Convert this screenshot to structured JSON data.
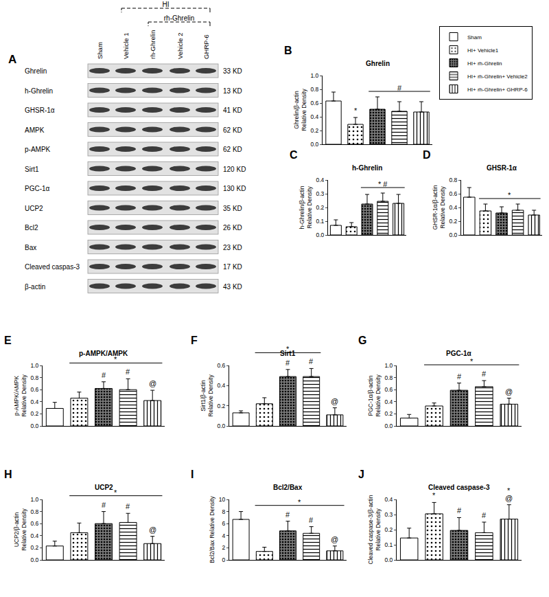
{
  "panel_a": {
    "label": "A",
    "brackets": [
      {
        "text": "HI",
        "from": 1,
        "to": 4
      },
      {
        "text": "rh-Ghrelin",
        "from": 2,
        "to": 4
      }
    ],
    "lanes": [
      "Sham",
      "Vehicle 1",
      "rh-Ghrelin",
      "Vehicle 2",
      "GHRP-6"
    ],
    "rows": [
      {
        "name": "Ghrelin",
        "size": "33 KD"
      },
      {
        "name": "h-Ghrelin",
        "size": "13 KD"
      },
      {
        "name": "GHSR-1α",
        "size": "41 KD"
      },
      {
        "name": "AMPK",
        "size": "62 KD"
      },
      {
        "name": "p-AMPK",
        "size": "62 KD"
      },
      {
        "name": "Sirt1",
        "size": "120 KD"
      },
      {
        "name": "PGC-1α",
        "size": "130 KD"
      },
      {
        "name": "UCP2",
        "size": "35 KD"
      },
      {
        "name": "Bcl2",
        "size": "26 KD"
      },
      {
        "name": "Bax",
        "size": "23 KD"
      },
      {
        "name": "Cleaved caspas-3",
        "size": "17 KD"
      },
      {
        "name": "β-actin",
        "size": "43 KD"
      }
    ]
  },
  "legend": "upper right",
  "groups": [
    {
      "name": "Sham",
      "color": "#ffffff",
      "marker": "plain"
    },
    {
      "name": "HI+ Vehicle1",
      "color": "#ffffff",
      "marker": "dots"
    },
    {
      "name": "HI+ rh-Ghrelin",
      "color": "#7a7a7a",
      "marker": "dark-dots"
    },
    {
      "name": "HI+ rh-Ghrelin+ Vehicle2",
      "color": "#ffffff",
      "marker": "horizontal"
    },
    {
      "name": "HI+ rh-Ghrelin+ GHRP-6",
      "color": "#ffffff",
      "marker": "vertical"
    }
  ],
  "chart_data": [
    {
      "panel": "B",
      "type": "bar",
      "title": "Ghrelin",
      "y_label": "Ghrelin/β-actin\nRelative Density",
      "categories": [
        "Sham",
        "HI+ Vehicle1",
        "HI+ rh-Ghrelin",
        "HI+ rh-Ghrelin+ Vehicle2",
        "HI+ rh-Ghrelin+ GHRP-6"
      ],
      "tick_labels": "y",
      "values": [
        0.63,
        0.29,
        0.51,
        0.48,
        0.47
      ],
      "errors": [
        0.13,
        0.1,
        0.18,
        0.14,
        0.15
      ],
      "ylim": [
        0,
        1.0
      ],
      "yticks": [
        {
          "value": 0,
          "label": "0.0"
        },
        {
          "value": 0.2,
          "label": "0.2"
        },
        {
          "value": 0.4,
          "label": "0.4"
        },
        {
          "value": 0.6,
          "label": "0.6"
        },
        {
          "value": 0.8,
          "label": "0.8"
        },
        {
          "value": 1.0,
          "label": "1.0"
        }
      ],
      "annotations": [
        {
          "text": "*",
          "from": 1,
          "to": 1
        },
        {
          "text": "#",
          "from": 2,
          "to": 4
        }
      ]
    },
    {
      "panel": "C",
      "type": "bar",
      "title": "h-Ghrelin",
      "y_label": "h-Ghrelin/β-actin\nRelative Density",
      "categories": [
        "Sham",
        "HI+ Vehicle1",
        "HI+ rh-Ghrelin",
        "HI+ rh-Ghrelin+ Vehicle2",
        "HI+ rh-Ghrelin+ GHRP-6"
      ],
      "tick_labels": "y",
      "values": [
        0.07,
        0.06,
        0.225,
        0.245,
        0.23
      ],
      "errors": [
        0.04,
        0.03,
        0.07,
        0.06,
        0.065
      ],
      "ylim": [
        0,
        0.4
      ],
      "yticks": [
        {
          "value": 0,
          "label": "0.0"
        },
        0.1,
        0.2,
        0.3,
        0.4
      ],
      "annotations": [
        {
          "text": "* #",
          "from": 2,
          "to": 4
        }
      ]
    },
    {
      "panel": "D",
      "type": "bar",
      "title": "GHSR-1α",
      "y_label": "GHSR-1α/β-actin\nRelative Density",
      "categories": [
        "Sham",
        "HI+ Vehicle1",
        "HI+ rh-Ghrelin",
        "HI+ rh-Ghrelin+ Vehicle2",
        "HI+ rh-Ghrelin+ GHRP-6"
      ],
      "tick_labels": "y",
      "values": [
        0.55,
        0.35,
        0.32,
        0.36,
        0.29
      ],
      "errors": [
        0.14,
        0.1,
        0.09,
        0.09,
        0.07
      ],
      "ylim": [
        0,
        0.8
      ],
      "yticks": [
        {
          "value": 0,
          "label": "0.0"
        },
        0.2,
        0.4,
        0.6,
        0.8
      ],
      "annotations": [
        {
          "text": "*",
          "from": 1,
          "to": 4
        }
      ]
    },
    {
      "panel": "E",
      "type": "bar",
      "title": "p-AMPK/AMPK",
      "y_label": "p-AMPK/AMPK\nRelative Density",
      "categories": [
        "Sham",
        "HI+ Vehicle1",
        "HI+ rh-Ghrelin",
        "HI+ rh-Ghrelin+ Vehicle2",
        "HI+ rh-Ghrelin+ GHRP-6"
      ],
      "tick_labels": "y",
      "values": [
        0.29,
        0.46,
        0.62,
        0.6,
        0.42
      ],
      "errors": [
        0.1,
        0.1,
        0.11,
        0.18,
        0.17
      ],
      "ylim": [
        0,
        1.0
      ],
      "yticks": [
        {
          "value": 0,
          "label": "0.0"
        },
        {
          "value": 0.2,
          "label": "0.2"
        },
        {
          "value": 0.4,
          "label": "0.4"
        },
        {
          "value": 0.6,
          "label": "0.6"
        },
        {
          "value": 0.8,
          "label": "0.8"
        },
        {
          "value": 1.0,
          "label": "1.0"
        }
      ],
      "annotations": [
        {
          "text": "#",
          "from": 2,
          "to": 2
        },
        {
          "text": "#",
          "from": 3,
          "to": 3
        },
        {
          "text": "@",
          "from": 4,
          "to": 4
        },
        {
          "text": "*",
          "from": 1,
          "to": 4
        }
      ]
    },
    {
      "panel": "F",
      "type": "bar",
      "title": "Sirt1",
      "y_label": "Sirt1/β-actin\nRelative Density",
      "categories": [
        "Sham",
        "HI+ Vehicle1",
        "HI+ rh-Ghrelin",
        "HI+ rh-Ghrelin+ Vehicle2",
        "HI+ rh-Ghrelin+ GHRP-6"
      ],
      "tick_labels": "y",
      "values": [
        0.13,
        0.22,
        0.49,
        0.49,
        0.11
      ],
      "errors": [
        0.02,
        0.06,
        0.07,
        0.08,
        0.07
      ],
      "ylim": [
        0,
        0.6
      ],
      "yticks": [
        {
          "value": 0,
          "label": "0.0"
        },
        0.2,
        0.4,
        0.6
      ],
      "annotations": [
        {
          "text": "#",
          "from": 2,
          "to": 2
        },
        {
          "text": "#",
          "from": 3,
          "to": 3
        },
        {
          "text": "@",
          "from": 4,
          "to": 4
        },
        {
          "text": "*",
          "from": 1,
          "to": 3
        }
      ]
    },
    {
      "panel": "G",
      "type": "bar",
      "title": "PGC-1α",
      "y_label": "PGC-1α/β-actin\nRelative Density",
      "categories": [
        "Sham",
        "HI+ Vehicle1",
        "HI+ rh-Ghrelin",
        "HI+ rh-Ghrelin+ Vehicle2",
        "HI+ rh-Ghrelin+ GHRP-6"
      ],
      "tick_labels": "y",
      "values": [
        0.13,
        0.33,
        0.59,
        0.65,
        0.36
      ],
      "errors": [
        0.06,
        0.05,
        0.12,
        0.1,
        0.1
      ],
      "ylim": [
        0,
        1.0
      ],
      "yticks": [
        {
          "value": 0,
          "label": "0.0"
        },
        {
          "value": 0.2,
          "label": "0.2"
        },
        {
          "value": 0.4,
          "label": "0.4"
        },
        {
          "value": 0.6,
          "label": "0.6"
        },
        {
          "value": 0.8,
          "label": "0.8"
        },
        {
          "value": 1.0,
          "label": "1.0"
        }
      ],
      "annotations": [
        {
          "text": "#",
          "from": 2,
          "to": 2
        },
        {
          "text": "#",
          "from": 3,
          "to": 3
        },
        {
          "text": "@",
          "from": 4,
          "to": 4
        },
        {
          "text": "*",
          "from": 1,
          "to": 4
        }
      ]
    },
    {
      "panel": "H",
      "type": "bar",
      "title": "UCP2",
      "y_label": "UCP2/β-actin\nRelative Density",
      "categories": [
        "Sham",
        "HI+ Vehicle1",
        "HI+ rh-Ghrelin",
        "HI+ rh-Ghrelin+ Vehicle2",
        "HI+ rh-Ghrelin+ GHRP-6"
      ],
      "tick_labels": "y",
      "values": [
        0.23,
        0.45,
        0.6,
        0.62,
        0.27
      ],
      "errors": [
        0.08,
        0.16,
        0.2,
        0.15,
        0.12
      ],
      "ylim": [
        0,
        1.0
      ],
      "yticks": [
        {
          "value": 0,
          "label": "0.0"
        },
        {
          "value": 0.2,
          "label": "0.2"
        },
        {
          "value": 0.4,
          "label": "0.4"
        },
        {
          "value": 0.6,
          "label": "0.6"
        },
        {
          "value": 0.8,
          "label": "0.8"
        },
        {
          "value": 1.0,
          "label": "1.0"
        }
      ],
      "annotations": [
        {
          "text": "#",
          "from": 2,
          "to": 2
        },
        {
          "text": "#",
          "from": 3,
          "to": 3
        },
        {
          "text": "@",
          "from": 4,
          "to": 4
        },
        {
          "text": "*",
          "from": 1,
          "to": 4
        }
      ]
    },
    {
      "panel": "I",
      "type": "bar",
      "title": "Bcl2/Bax",
      "y_label": "Bcl2/Bax Relative Density",
      "categories": [
        "Sham",
        "HI+ Vehicle1",
        "HI+ rh-Ghrelin",
        "HI+ rh-Ghrelin+ Vehicle2",
        "HI+ rh-Ghrelin+ GHRP-6"
      ],
      "tick_labels": "y",
      "values": [
        6.7,
        1.4,
        4.8,
        4.4,
        1.5
      ],
      "errors": [
        1.3,
        0.7,
        1.6,
        1.1,
        0.8
      ],
      "ylim": [
        0,
        10
      ],
      "yticks": [
        0,
        2,
        4,
        6,
        8,
        10
      ],
      "annotations": [
        {
          "text": "#",
          "from": 2,
          "to": 2
        },
        {
          "text": "#",
          "from": 3,
          "to": 3
        },
        {
          "text": "@",
          "from": 4,
          "to": 4
        },
        {
          "text": "*",
          "from": 1,
          "to": 4
        }
      ]
    },
    {
      "panel": "J",
      "type": "bar",
      "title": "Cleaved caspase-3",
      "y_label": "Cleaved caspase-3/β-actin\nRelative Density",
      "categories": [
        "Sham",
        "HI+ Vehicle1",
        "HI+ rh-Ghrelin",
        "HI+ rh-Ghrelin+ Vehicle2",
        "HI+ rh-Ghrelin+ GHRP-6"
      ],
      "tick_labels": "y",
      "values": [
        0.145,
        0.305,
        0.195,
        0.18,
        0.27
      ],
      "errors": [
        0.065,
        0.075,
        0.085,
        0.07,
        0.095
      ],
      "ylim": [
        0,
        0.4
      ],
      "yticks": [
        {
          "value": 0,
          "label": "0.0"
        },
        0.1,
        0.2,
        0.3,
        0.4
      ],
      "annotations": [
        {
          "text": "*",
          "from": 1,
          "to": 1
        },
        {
          "text": "#",
          "from": 2,
          "to": 2
        },
        {
          "text": "#",
          "from": 3,
          "to": 3
        },
        {
          "text": "@",
          "from": 4,
          "to": 4
        },
        {
          "text": "*",
          "from": 4,
          "to": 4
        }
      ]
    }
  ]
}
